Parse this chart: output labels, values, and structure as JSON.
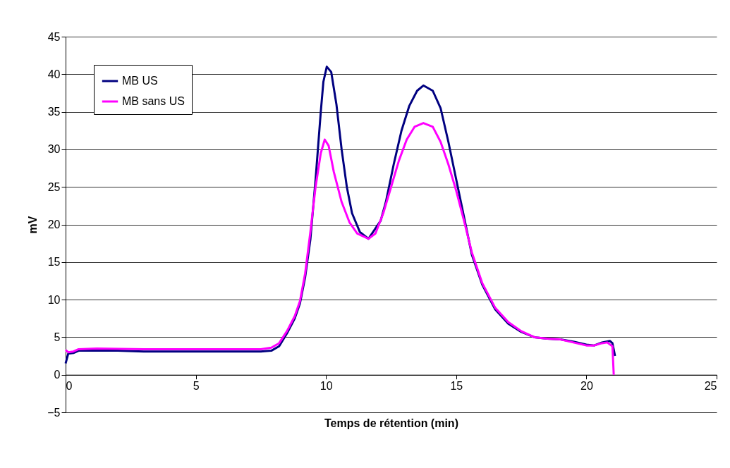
{
  "chart_data": {
    "type": "line",
    "xlabel": "Temps de rétention (min)",
    "ylabel": "mV",
    "xlim": [
      0,
      25
    ],
    "xticks": [
      0,
      5,
      10,
      15,
      20,
      25
    ],
    "ylim": [
      -5,
      45
    ],
    "yticks": [
      -5,
      0,
      5,
      10,
      15,
      20,
      25,
      30,
      35,
      40,
      45
    ],
    "grid": "y",
    "legend": "top left",
    "marker": "none",
    "line_style": "solid",
    "series": [
      {
        "name": "MB US",
        "color": "#000080",
        "x": [
          0,
          0.1,
          0.3,
          0.5,
          2,
          3,
          7.5,
          7.9,
          8.2,
          8.5,
          8.8,
          9.0,
          9.2,
          9.4,
          9.6,
          9.8,
          9.9,
          10.03,
          10.2,
          10.4,
          10.6,
          10.8,
          11.0,
          11.3,
          11.63,
          12.1,
          12.3,
          12.6,
          12.9,
          13.2,
          13.5,
          13.74,
          14.1,
          14.4,
          14.7,
          15.0,
          15.3,
          15.6,
          16.0,
          16.5,
          17.0,
          17.5,
          18.0,
          18.5,
          19.0,
          19.5,
          20.0,
          20.3,
          20.6,
          20.9,
          21.0,
          21.1
        ],
        "values": [
          1.5,
          2.8,
          2.9,
          3.2,
          3.2,
          3.1,
          3.1,
          3.2,
          3.8,
          5.5,
          7.5,
          9.5,
          13,
          18,
          26,
          35,
          39,
          41,
          40.3,
          36,
          30,
          25,
          21.5,
          19,
          18.1,
          20.5,
          23,
          28,
          32.5,
          35.8,
          37.8,
          38.5,
          37.8,
          35.5,
          31,
          26,
          21,
          16,
          12,
          8.7,
          6.8,
          5.7,
          5.0,
          4.8,
          4.7,
          4.4,
          4.0,
          3.9,
          4.3,
          4.5,
          4.2,
          2.5
        ]
      },
      {
        "name": "MB sans US",
        "color": "#ff00ff",
        "x": [
          0,
          0.1,
          0.3,
          0.5,
          1.2,
          3,
          7.5,
          7.9,
          8.2,
          8.5,
          8.8,
          9.0,
          9.2,
          9.4,
          9.6,
          9.8,
          9.95,
          10.1,
          10.3,
          10.6,
          10.9,
          11.2,
          11.63,
          11.9,
          12.2,
          12.5,
          12.8,
          13.1,
          13.4,
          13.74,
          14.1,
          14.4,
          14.7,
          15.0,
          15.3,
          15.6,
          16.0,
          16.5,
          17.0,
          17.5,
          18.0,
          18.5,
          19.0,
          19.5,
          20.0,
          20.3,
          20.6,
          20.8,
          21.0,
          21.05
        ],
        "values": [
          3.3,
          3.0,
          3.1,
          3.4,
          3.5,
          3.4,
          3.4,
          3.6,
          4.2,
          5.8,
          7.8,
          9.8,
          13.5,
          19,
          25,
          29.5,
          31.3,
          30.5,
          27,
          23,
          20.3,
          18.8,
          18.1,
          18.8,
          21.5,
          25,
          28.5,
          31.3,
          33,
          33.5,
          33,
          31,
          28,
          24.5,
          20.5,
          16.3,
          12.2,
          8.9,
          7.0,
          5.8,
          5.0,
          4.8,
          4.7,
          4.3,
          3.9,
          3.9,
          4.2,
          4.3,
          3.8,
          0
        ]
      }
    ]
  }
}
